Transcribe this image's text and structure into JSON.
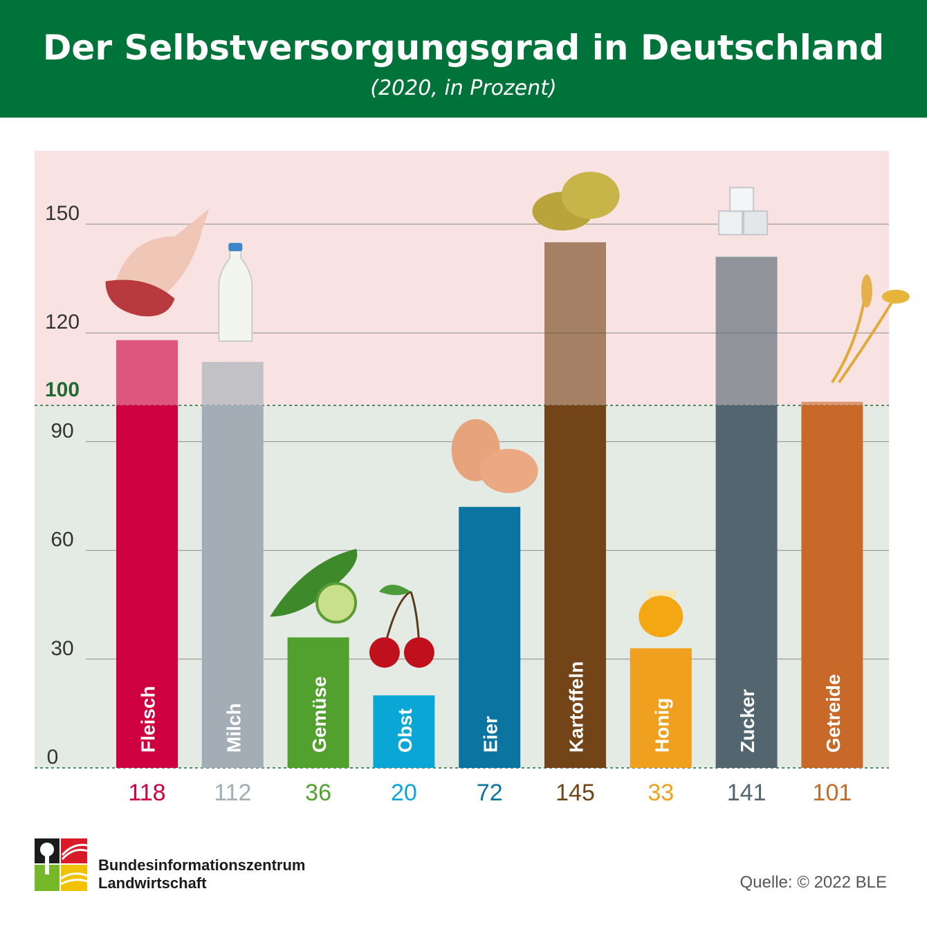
{
  "header": {
    "title": "Der Selbstversorgungsgrad in Deutschland",
    "subtitle": "(2020, in Prozent)"
  },
  "chart_data": {
    "type": "bar",
    "title": "Der Selbstversorgungsgrad in Deutschland",
    "subtitle": "(2020, in Prozent)",
    "categories": [
      "Fleisch",
      "Milch",
      "Gemüse",
      "Obst",
      "Eier",
      "Kartoffeln",
      "Honig",
      "Zucker",
      "Getreide"
    ],
    "values": [
      118,
      112,
      36,
      20,
      72,
      145,
      33,
      141,
      101
    ],
    "value_labels": [
      "118",
      "112",
      "36",
      "20",
      "72",
      "145",
      "33",
      "141",
      "101"
    ],
    "colors": [
      "#cf0040",
      "#a2adb5",
      "#52a12f",
      "#0aa6d6",
      "#0b74a0",
      "#744419",
      "#f0a01f",
      "#536670",
      "#c8692a"
    ],
    "label_colors": [
      "#cf0040",
      "#a2adb5",
      "#52a12f",
      "#0aa6d6",
      "#0b74a0",
      "#744419",
      "#f0a01f",
      "#536670",
      "#c8692a"
    ],
    "yticks": [
      0,
      30,
      60,
      90,
      120,
      150
    ],
    "ytick_labels": [
      "0",
      "30",
      "60",
      "90",
      "120",
      "150"
    ],
    "reference_value": 100,
    "reference_label": "100",
    "reference_color": "#1f6b33",
    "ylim": [
      0,
      170
    ],
    "grid": true,
    "xlabel": "",
    "ylabel": "",
    "above_region_color": "#f8e3e2",
    "below_region_color": "#e4ebe4",
    "icons": [
      "meat-icon",
      "milk-bottle-icon",
      "cucumber-icon",
      "cherries-icon",
      "eggs-icon",
      "potatoes-icon",
      "honey-jar-icon",
      "sugar-cubes-icon",
      "grain-icon"
    ]
  },
  "footer": {
    "org_line1": "Bundesinformationszentrum",
    "org_line2": "Landwirtschaft",
    "source": "Quelle: © 2022 BLE"
  }
}
